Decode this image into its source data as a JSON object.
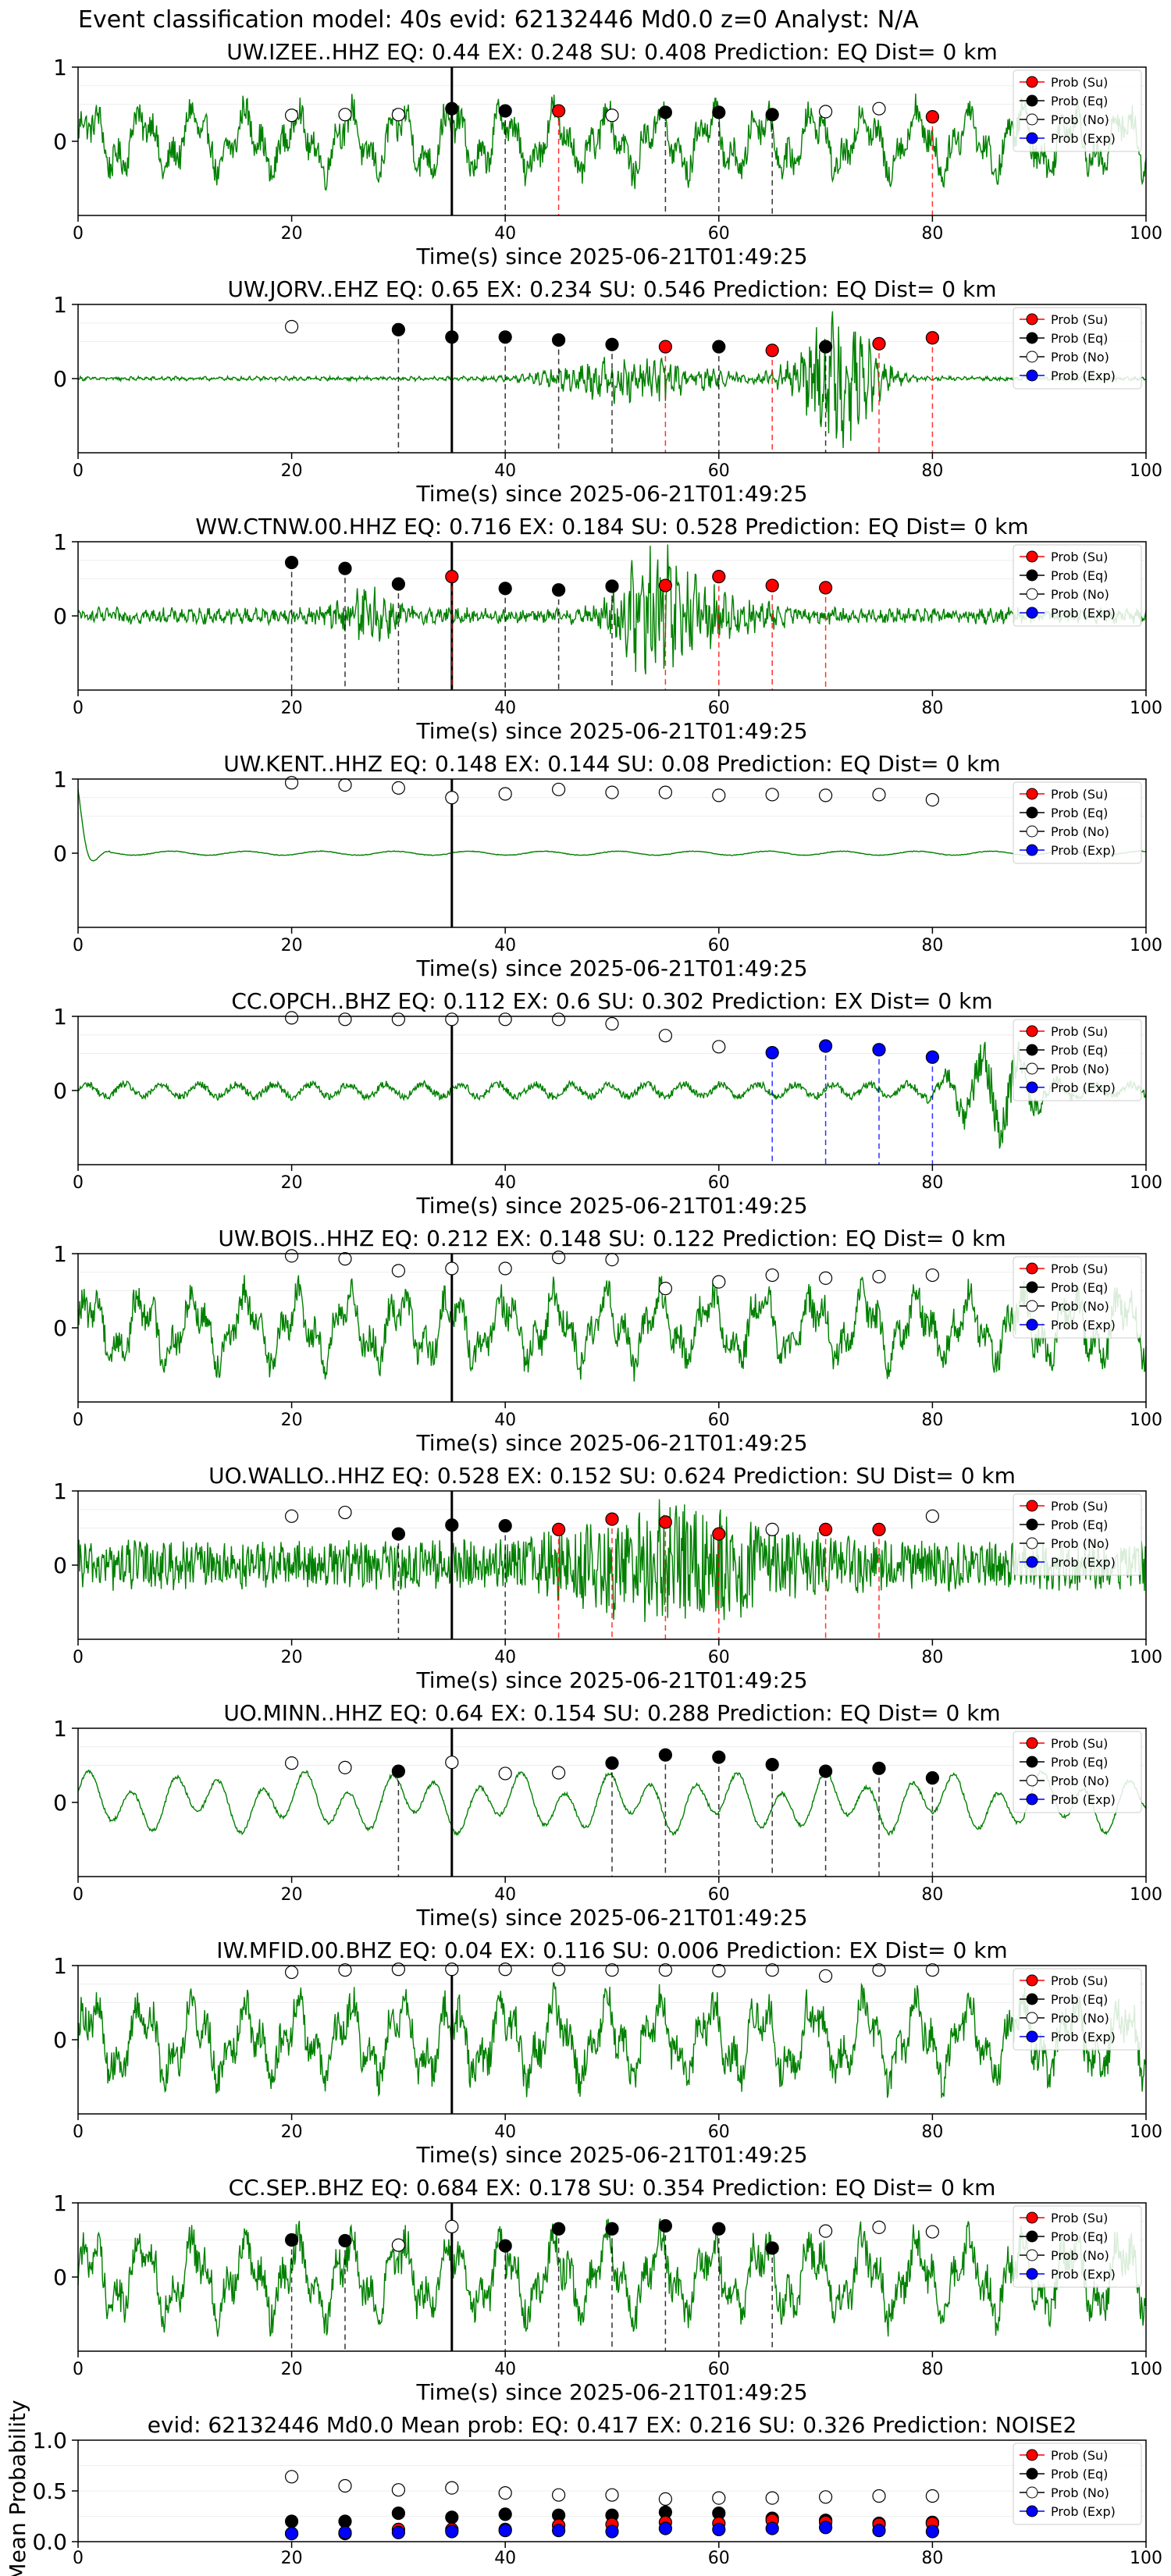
{
  "suptitle": "Event classification model: 40s evid: 62132446 Md0.0 z=0 Analyst: N/A",
  "legend_labels": [
    "Prob (Su)",
    "Prob (Eq)",
    "Prob (No)",
    "Prob (Exp)"
  ],
  "colors": {
    "su": "#ff0000",
    "eq": "#000000",
    "no": "#ffffff",
    "exp": "#0000ff",
    "trace": "#008000"
  },
  "event_marker_time": 35,
  "chart_data": [
    {
      "type": "line",
      "title": "UW.IZEE..HHZ   EQ: 0.44   EX: 0.248   SU: 0.408    Prediction: EQ    Dist= 0 km",
      "xlabel": "Time(s) since 2025-06-21T01:49:25",
      "xlim": [
        0,
        100
      ],
      "ylim": [
        -1,
        1
      ],
      "xticks": [
        0,
        20,
        40,
        60,
        80,
        100
      ],
      "yticks": [
        0,
        1
      ],
      "trace_style": "noisy-large",
      "amplitude": 0.7,
      "show_legend": true,
      "points": [
        {
          "t": 20,
          "p": 0.35,
          "cls": "no"
        },
        {
          "t": 25,
          "p": 0.36,
          "cls": "no"
        },
        {
          "t": 30,
          "p": 0.36,
          "cls": "no"
        },
        {
          "t": 35,
          "p": 0.44,
          "cls": "eq"
        },
        {
          "t": 40,
          "p": 0.41,
          "cls": "eq"
        },
        {
          "t": 45,
          "p": 0.41,
          "cls": "su"
        },
        {
          "t": 50,
          "p": 0.35,
          "cls": "no"
        },
        {
          "t": 55,
          "p": 0.39,
          "cls": "eq"
        },
        {
          "t": 60,
          "p": 0.39,
          "cls": "eq"
        },
        {
          "t": 65,
          "p": 0.36,
          "cls": "eq"
        },
        {
          "t": 70,
          "p": 0.4,
          "cls": "no"
        },
        {
          "t": 75,
          "p": 0.44,
          "cls": "no"
        },
        {
          "t": 80,
          "p": 0.33,
          "cls": "su"
        }
      ]
    },
    {
      "type": "line",
      "title": "UW.JORV..EHZ   EQ: 0.65   EX: 0.234   SU: 0.546    Prediction: EQ    Dist= 0 km",
      "xlabel": "Time(s) since 2025-06-21T01:49:25",
      "xlim": [
        0,
        100
      ],
      "ylim": [
        -1,
        1
      ],
      "xticks": [
        0,
        20,
        40,
        60,
        80,
        100
      ],
      "yticks": [
        0,
        1
      ],
      "trace_style": "quiet-burst",
      "amplitude": 0.8,
      "show_legend": true,
      "points": [
        {
          "t": 20,
          "p": 0.7,
          "cls": "no"
        },
        {
          "t": 30,
          "p": 0.66,
          "cls": "eq"
        },
        {
          "t": 35,
          "p": 0.56,
          "cls": "eq"
        },
        {
          "t": 40,
          "p": 0.56,
          "cls": "eq"
        },
        {
          "t": 45,
          "p": 0.52,
          "cls": "eq"
        },
        {
          "t": 50,
          "p": 0.46,
          "cls": "eq"
        },
        {
          "t": 55,
          "p": 0.43,
          "cls": "su"
        },
        {
          "t": 60,
          "p": 0.43,
          "cls": "eq"
        },
        {
          "t": 65,
          "p": 0.38,
          "cls": "su"
        },
        {
          "t": 70,
          "p": 0.43,
          "cls": "eq"
        },
        {
          "t": 75,
          "p": 0.47,
          "cls": "su"
        },
        {
          "t": 80,
          "p": 0.55,
          "cls": "su"
        }
      ]
    },
    {
      "type": "line",
      "title": "WW.CTNW.00.HHZ   EQ: 0.716   EX: 0.184   SU: 0.528   Prediction: EQ    Dist= 0 km",
      "xlabel": "Time(s) since 2025-06-21T01:49:25",
      "xlim": [
        0,
        100
      ],
      "ylim": [
        -1,
        1
      ],
      "xticks": [
        0,
        20,
        40,
        60,
        80,
        100
      ],
      "yticks": [
        0,
        1
      ],
      "trace_style": "small-burst",
      "amplitude": 0.8,
      "show_legend": true,
      "points": [
        {
          "t": 20,
          "p": 0.72,
          "cls": "eq"
        },
        {
          "t": 25,
          "p": 0.64,
          "cls": "eq"
        },
        {
          "t": 30,
          "p": 0.43,
          "cls": "eq"
        },
        {
          "t": 35,
          "p": 0.53,
          "cls": "su"
        },
        {
          "t": 40,
          "p": 0.37,
          "cls": "eq"
        },
        {
          "t": 45,
          "p": 0.35,
          "cls": "eq"
        },
        {
          "t": 50,
          "p": 0.4,
          "cls": "eq"
        },
        {
          "t": 55,
          "p": 0.41,
          "cls": "su"
        },
        {
          "t": 60,
          "p": 0.53,
          "cls": "su"
        },
        {
          "t": 65,
          "p": 0.41,
          "cls": "su"
        },
        {
          "t": 70,
          "p": 0.38,
          "cls": "su"
        }
      ]
    },
    {
      "type": "line",
      "title": "UW.KENT..HHZ   EQ: 0.148   EX: 0.144   SU: 0.08    Prediction: EQ    Dist= 0 km",
      "xlabel": "Time(s) since 2025-06-21T01:49:25",
      "xlim": [
        0,
        100
      ],
      "ylim": [
        -1,
        1
      ],
      "xticks": [
        0,
        20,
        40,
        60,
        80,
        100
      ],
      "yticks": [
        0,
        1
      ],
      "trace_style": "flat-spike",
      "amplitude": 0.9,
      "show_legend": true,
      "points": [
        {
          "t": 20,
          "p": 0.95,
          "cls": "no"
        },
        {
          "t": 25,
          "p": 0.92,
          "cls": "no"
        },
        {
          "t": 30,
          "p": 0.88,
          "cls": "no"
        },
        {
          "t": 35,
          "p": 0.75,
          "cls": "no"
        },
        {
          "t": 40,
          "p": 0.8,
          "cls": "no"
        },
        {
          "t": 45,
          "p": 0.86,
          "cls": "no"
        },
        {
          "t": 50,
          "p": 0.82,
          "cls": "no"
        },
        {
          "t": 55,
          "p": 0.82,
          "cls": "no"
        },
        {
          "t": 60,
          "p": 0.78,
          "cls": "no"
        },
        {
          "t": 65,
          "p": 0.79,
          "cls": "no"
        },
        {
          "t": 70,
          "p": 0.78,
          "cls": "no"
        },
        {
          "t": 75,
          "p": 0.79,
          "cls": "no"
        },
        {
          "t": 80,
          "p": 0.72,
          "cls": "no"
        }
      ]
    },
    {
      "type": "line",
      "title": "CC.OPCH..BHZ   EQ: 0.112  EX: 0.6  SU: 0.302   Prediction: EX    Dist= 0 km",
      "xlabel": "Time(s) since 2025-06-21T01:49:25",
      "xlim": [
        0,
        100
      ],
      "ylim": [
        -1,
        1
      ],
      "xticks": [
        0,
        20,
        40,
        60,
        80,
        100
      ],
      "yticks": [
        0,
        1
      ],
      "trace_style": "low-wave-late",
      "amplitude": 0.8,
      "show_legend": true,
      "points": [
        {
          "t": 20,
          "p": 0.98,
          "cls": "no"
        },
        {
          "t": 25,
          "p": 0.96,
          "cls": "no"
        },
        {
          "t": 30,
          "p": 0.96,
          "cls": "no"
        },
        {
          "t": 35,
          "p": 0.96,
          "cls": "no"
        },
        {
          "t": 40,
          "p": 0.96,
          "cls": "no"
        },
        {
          "t": 45,
          "p": 0.96,
          "cls": "no"
        },
        {
          "t": 50,
          "p": 0.9,
          "cls": "no"
        },
        {
          "t": 55,
          "p": 0.74,
          "cls": "no"
        },
        {
          "t": 60,
          "p": 0.59,
          "cls": "no"
        },
        {
          "t": 65,
          "p": 0.51,
          "cls": "exp"
        },
        {
          "t": 70,
          "p": 0.6,
          "cls": "exp"
        },
        {
          "t": 75,
          "p": 0.55,
          "cls": "exp"
        },
        {
          "t": 80,
          "p": 0.45,
          "cls": "exp"
        }
      ]
    },
    {
      "type": "line",
      "title": "UW.BOIS..HHZ   EQ: 0.212  EX: 0.148  SU: 0.122   Prediction: EQ    Dist= 0 km",
      "xlabel": "Time(s) since 2025-06-21T01:49:25",
      "xlim": [
        0,
        100
      ],
      "ylim": [
        -1,
        1
      ],
      "xticks": [
        0,
        20,
        40,
        60,
        80,
        100
      ],
      "yticks": [
        0,
        1
      ],
      "trace_style": "noisy-large",
      "amplitude": 0.75,
      "show_legend": true,
      "points": [
        {
          "t": 20,
          "p": 0.97,
          "cls": "no"
        },
        {
          "t": 25,
          "p": 0.93,
          "cls": "no"
        },
        {
          "t": 30,
          "p": 0.77,
          "cls": "no"
        },
        {
          "t": 35,
          "p": 0.8,
          "cls": "no"
        },
        {
          "t": 40,
          "p": 0.8,
          "cls": "no"
        },
        {
          "t": 45,
          "p": 0.95,
          "cls": "no"
        },
        {
          "t": 50,
          "p": 0.92,
          "cls": "no"
        },
        {
          "t": 55,
          "p": 0.53,
          "cls": "no"
        },
        {
          "t": 60,
          "p": 0.62,
          "cls": "no"
        },
        {
          "t": 65,
          "p": 0.71,
          "cls": "no"
        },
        {
          "t": 70,
          "p": 0.67,
          "cls": "no"
        },
        {
          "t": 75,
          "p": 0.69,
          "cls": "no"
        },
        {
          "t": 80,
          "p": 0.71,
          "cls": "no"
        }
      ]
    },
    {
      "type": "line",
      "title": "UO.WALLO..HHZ   EQ: 0.528  EX: 0.152  SU: 0.624   Prediction: SU    Dist= 0 km",
      "xlabel": "Time(s) since 2025-06-21T01:49:25",
      "xlim": [
        0,
        100
      ],
      "ylim": [
        -1,
        1
      ],
      "xticks": [
        0,
        20,
        40,
        60,
        80,
        100
      ],
      "yticks": [
        0,
        1
      ],
      "trace_style": "dense-noise",
      "amplitude": 0.9,
      "show_legend": true,
      "points": [
        {
          "t": 20,
          "p": 0.66,
          "cls": "no"
        },
        {
          "t": 25,
          "p": 0.71,
          "cls": "no"
        },
        {
          "t": 30,
          "p": 0.42,
          "cls": "eq"
        },
        {
          "t": 35,
          "p": 0.54,
          "cls": "eq"
        },
        {
          "t": 40,
          "p": 0.53,
          "cls": "eq"
        },
        {
          "t": 45,
          "p": 0.48,
          "cls": "su"
        },
        {
          "t": 50,
          "p": 0.62,
          "cls": "su"
        },
        {
          "t": 55,
          "p": 0.58,
          "cls": "su"
        },
        {
          "t": 60,
          "p": 0.42,
          "cls": "su"
        },
        {
          "t": 65,
          "p": 0.48,
          "cls": "no"
        },
        {
          "t": 70,
          "p": 0.48,
          "cls": "su"
        },
        {
          "t": 75,
          "p": 0.48,
          "cls": "su"
        },
        {
          "t": 80,
          "p": 0.66,
          "cls": "no"
        }
      ]
    },
    {
      "type": "line",
      "title": "UO.MINN..HHZ   EQ: 0.64  EX: 0.154  SU: 0.288   Prediction: EQ    Dist= 0 km",
      "xlabel": "Time(s) since 2025-06-21T01:49:25",
      "xlim": [
        0,
        100
      ],
      "ylim": [
        -1,
        1
      ],
      "xticks": [
        0,
        20,
        40,
        60,
        80,
        100
      ],
      "yticks": [
        0,
        1
      ],
      "trace_style": "smooth-wave",
      "amplitude": 0.6,
      "show_legend": true,
      "points": [
        {
          "t": 20,
          "p": 0.53,
          "cls": "no"
        },
        {
          "t": 25,
          "p": 0.47,
          "cls": "no"
        },
        {
          "t": 30,
          "p": 0.42,
          "cls": "eq"
        },
        {
          "t": 35,
          "p": 0.54,
          "cls": "no"
        },
        {
          "t": 40,
          "p": 0.39,
          "cls": "no"
        },
        {
          "t": 45,
          "p": 0.4,
          "cls": "no"
        },
        {
          "t": 50,
          "p": 0.53,
          "cls": "eq"
        },
        {
          "t": 55,
          "p": 0.64,
          "cls": "eq"
        },
        {
          "t": 60,
          "p": 0.61,
          "cls": "eq"
        },
        {
          "t": 65,
          "p": 0.51,
          "cls": "eq"
        },
        {
          "t": 70,
          "p": 0.42,
          "cls": "eq"
        },
        {
          "t": 75,
          "p": 0.46,
          "cls": "eq"
        },
        {
          "t": 80,
          "p": 0.33,
          "cls": "eq"
        }
      ]
    },
    {
      "type": "line",
      "title": "IW.MFID.00.BHZ   EQ: 0.04   EX: 0.116   SU: 0.006    Prediction: EX    Dist= 0 km",
      "xlabel": "Time(s) since 2025-06-21T01:49:25",
      "xlim": [
        0,
        100
      ],
      "ylim": [
        -1,
        1
      ],
      "xticks": [
        0,
        20,
        40,
        60,
        80,
        100
      ],
      "yticks": [
        0,
        1
      ],
      "trace_style": "noisy-large",
      "amplitude": 0.85,
      "show_legend": true,
      "points": [
        {
          "t": 20,
          "p": 0.91,
          "cls": "no"
        },
        {
          "t": 25,
          "p": 0.94,
          "cls": "no"
        },
        {
          "t": 30,
          "p": 0.95,
          "cls": "no"
        },
        {
          "t": 35,
          "p": 0.95,
          "cls": "no"
        },
        {
          "t": 40,
          "p": 0.95,
          "cls": "no"
        },
        {
          "t": 45,
          "p": 0.95,
          "cls": "no"
        },
        {
          "t": 50,
          "p": 0.94,
          "cls": "no"
        },
        {
          "t": 55,
          "p": 0.94,
          "cls": "no"
        },
        {
          "t": 60,
          "p": 0.93,
          "cls": "no"
        },
        {
          "t": 65,
          "p": 0.94,
          "cls": "no"
        },
        {
          "t": 70,
          "p": 0.86,
          "cls": "no"
        },
        {
          "t": 75,
          "p": 0.94,
          "cls": "no"
        },
        {
          "t": 80,
          "p": 0.94,
          "cls": "no"
        }
      ]
    },
    {
      "type": "line",
      "title": "CC.SEP..BHZ   EQ: 0.684  EX: 0.178  SU: 0.354   Prediction: EQ    Dist= 0 km",
      "xlabel": "Time(s) since 2025-06-21T01:49:25",
      "xlim": [
        0,
        100
      ],
      "ylim": [
        -1,
        1
      ],
      "xticks": [
        0,
        20,
        40,
        60,
        80,
        100
      ],
      "yticks": [
        0,
        1
      ],
      "trace_style": "noisy-large",
      "amplitude": 0.85,
      "show_legend": true,
      "points": [
        {
          "t": 20,
          "p": 0.5,
          "cls": "eq"
        },
        {
          "t": 25,
          "p": 0.49,
          "cls": "eq"
        },
        {
          "t": 30,
          "p": 0.43,
          "cls": "no"
        },
        {
          "t": 35,
          "p": 0.68,
          "cls": "no"
        },
        {
          "t": 40,
          "p": 0.42,
          "cls": "eq"
        },
        {
          "t": 45,
          "p": 0.65,
          "cls": "eq"
        },
        {
          "t": 50,
          "p": 0.65,
          "cls": "eq"
        },
        {
          "t": 55,
          "p": 0.69,
          "cls": "eq"
        },
        {
          "t": 60,
          "p": 0.65,
          "cls": "eq"
        },
        {
          "t": 65,
          "p": 0.39,
          "cls": "eq"
        },
        {
          "t": 70,
          "p": 0.62,
          "cls": "no"
        },
        {
          "t": 75,
          "p": 0.67,
          "cls": "no"
        },
        {
          "t": 80,
          "p": 0.61,
          "cls": "no"
        }
      ]
    },
    {
      "type": "scatter",
      "title": "evid: 62132446  Md0.0   Mean prob:   EQ: 0.417  EX: 0.216  SU: 0.326   Prediction: NOISE2",
      "ylabel": "Mean Probability",
      "xlim": [
        0,
        100
      ],
      "ylim": [
        0,
        1
      ],
      "xticks": [
        0,
        20,
        40,
        60,
        80,
        100
      ],
      "yticks": [
        0.0,
        0.5,
        1.0
      ],
      "show_legend": true,
      "series": [
        {
          "name": "Prob (No)",
          "cls": "no",
          "x": [
            20,
            25,
            30,
            35,
            40,
            45,
            50,
            55,
            60,
            65,
            70,
            75,
            80
          ],
          "values": [
            0.64,
            0.55,
            0.51,
            0.53,
            0.48,
            0.46,
            0.46,
            0.42,
            0.43,
            0.43,
            0.44,
            0.45,
            0.45
          ]
        },
        {
          "name": "Prob (Eq)",
          "cls": "eq",
          "x": [
            20,
            25,
            30,
            35,
            40,
            45,
            50,
            55,
            60,
            65,
            70,
            75,
            80
          ],
          "values": [
            0.2,
            0.2,
            0.28,
            0.24,
            0.27,
            0.26,
            0.26,
            0.29,
            0.28,
            0.23,
            0.21,
            0.18,
            0.19
          ]
        },
        {
          "name": "Prob (Su)",
          "cls": "su",
          "x": [
            20,
            25,
            30,
            35,
            40,
            45,
            50,
            55,
            60,
            65,
            70,
            75,
            80
          ],
          "values": [
            0.08,
            0.08,
            0.12,
            0.12,
            0.12,
            0.16,
            0.17,
            0.19,
            0.18,
            0.21,
            0.19,
            0.17,
            0.18
          ]
        },
        {
          "name": "Prob (Exp)",
          "cls": "exp",
          "x": [
            20,
            25,
            30,
            35,
            40,
            45,
            50,
            55,
            60,
            65,
            70,
            75,
            80
          ],
          "values": [
            0.08,
            0.09,
            0.09,
            0.1,
            0.11,
            0.11,
            0.1,
            0.13,
            0.12,
            0.13,
            0.14,
            0.11,
            0.1
          ]
        }
      ]
    }
  ]
}
